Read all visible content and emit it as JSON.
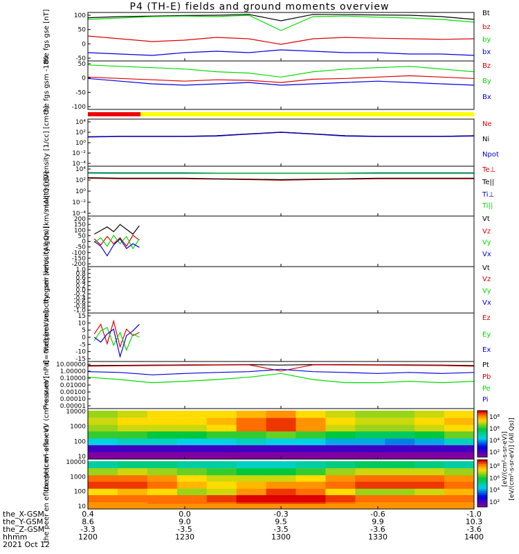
{
  "title": "P4 (TH-E) fields and ground moments overview",
  "footer": {
    "row_labels": [
      "the_X-GSM",
      "the_Y-GSM",
      "the_Z-GSM",
      "hhmm",
      "2021 Oct 12"
    ],
    "ticks": [
      [
        "0.4",
        "0.0",
        "-0.3",
        "-0.6",
        "-1.0"
      ],
      [
        "8.6",
        "9.0",
        "9.5",
        "9.9",
        "10.3"
      ],
      [
        "-3.3",
        "-3.5",
        "-3.5",
        "-3.6",
        "-3.6"
      ],
      [
        "1200",
        "1230",
        "1300",
        "1330",
        "1400"
      ]
    ]
  },
  "colors": {
    "black": "#000000",
    "red": "#dd0000",
    "green": "#00dd00",
    "blue": "#0000dd",
    "yellow": "#ffff00",
    "panel_red": "#ee0000"
  },
  "chart_data": [
    {
      "type": "line",
      "ylabel": "the fgs gse [nT]",
      "ylim": [
        -70,
        105
      ],
      "yticks": [
        "100",
        "50",
        "0",
        "-50"
      ],
      "x": [
        "12:00",
        "12:10",
        "12:20",
        "12:30",
        "12:40",
        "12:50",
        "13:00",
        "13:10",
        "13:20",
        "13:30",
        "13:40",
        "13:50",
        "14:00"
      ],
      "series": [
        {
          "name": "Bt",
          "color": "black",
          "values": [
            86,
            90,
            92,
            94,
            95,
            98,
            75,
            98,
            97,
            96,
            95,
            90,
            80
          ]
        },
        {
          "name": "bz",
          "color": "red",
          "values": [
            20,
            10,
            0,
            5,
            15,
            10,
            -10,
            10,
            15,
            12,
            10,
            8,
            10
          ]
        },
        {
          "name": "by",
          "color": "green",
          "values": [
            80,
            85,
            90,
            92,
            90,
            95,
            40,
            90,
            92,
            88,
            85,
            80,
            70
          ]
        },
        {
          "name": "bx",
          "color": "blue",
          "values": [
            -40,
            -45,
            -50,
            -40,
            -35,
            -40,
            -30,
            -35,
            -40,
            -40,
            -45,
            -45,
            -50
          ]
        }
      ]
    },
    {
      "type": "line",
      "ylabel": "the fgs gsm -180",
      "ylim": [
        -120,
        60
      ],
      "yticks": [
        "50",
        "0",
        "-50",
        "-100"
      ],
      "x": [
        "12:00",
        "12:10",
        "12:20",
        "12:30",
        "12:40",
        "12:50",
        "13:00",
        "13:10",
        "13:20",
        "13:30",
        "13:40",
        "13:50",
        "14:00"
      ],
      "series": [
        {
          "name": "Bz",
          "color": "red",
          "values": [
            0,
            -5,
            -10,
            -15,
            -10,
            -12,
            -20,
            -8,
            -5,
            0,
            5,
            0,
            -5
          ]
        },
        {
          "name": "By",
          "color": "green",
          "values": [
            45,
            40,
            35,
            30,
            20,
            15,
            0,
            20,
            30,
            35,
            40,
            30,
            20
          ]
        },
        {
          "name": "Bx",
          "color": "blue",
          "values": [
            -5,
            -15,
            -25,
            -30,
            -25,
            -20,
            -30,
            -25,
            -20,
            -15,
            -20,
            -25,
            -30
          ]
        }
      ]
    },
    {
      "type": "line",
      "ylabel": "Density [1/cc] [cm-3]",
      "scale": "log",
      "ylim": [
        0.0001,
        10000
      ],
      "yticks": [
        "10⁴",
        "10²",
        "10⁰",
        "10⁻²",
        "10⁻⁴"
      ],
      "x": [
        "12:00",
        "12:10",
        "12:20",
        "12:30",
        "12:40",
        "12:50",
        "13:00",
        "13:10",
        "13:20",
        "13:30",
        "13:40",
        "13:50",
        "14:00"
      ],
      "series": [
        {
          "name": "Ne",
          "color": "red",
          "values": [
            10,
            12,
            12,
            12,
            15,
            30,
            60,
            30,
            15,
            12,
            12,
            12,
            15
          ]
        },
        {
          "name": "Ni",
          "color": "black",
          "values": [
            10,
            12,
            12,
            12,
            15,
            30,
            60,
            30,
            15,
            12,
            12,
            12,
            15
          ]
        },
        {
          "name": "Npot",
          "color": "blue",
          "values": [
            9,
            11,
            11,
            11,
            13,
            28,
            55,
            28,
            13,
            11,
            11,
            11,
            13
          ]
        }
      ]
    },
    {
      "type": "line",
      "ylabel": "moqt3 [eV]",
      "scale": "log",
      "ylim": [
        1e-05,
        100000
      ],
      "yticks": [
        "10⁴",
        "10²",
        "10⁰",
        "10⁻²",
        "10⁻⁴"
      ],
      "x": [
        "12:00",
        "12:10",
        "12:20",
        "12:30",
        "12:40",
        "12:50",
        "13:00",
        "13:10",
        "13:20",
        "13:30",
        "13:40",
        "13:50",
        "14:00"
      ],
      "series": [
        {
          "name": "Te⊥",
          "color": "red",
          "values": [
            400,
            300,
            300,
            300,
            250,
            200,
            150,
            200,
            250,
            300,
            300,
            300,
            300
          ]
        },
        {
          "name": "Te||",
          "color": "black",
          "values": [
            500,
            400,
            400,
            400,
            300,
            250,
            200,
            250,
            300,
            400,
            400,
            400,
            400
          ]
        },
        {
          "name": "Ti⊥",
          "color": "blue",
          "values": [
            5000,
            4500,
            4500,
            4500,
            4000,
            4000,
            4000,
            4000,
            4000,
            4500,
            4500,
            4500,
            4500
          ]
        },
        {
          "name": "Ti||",
          "color": "green",
          "values": [
            4000,
            3500,
            3500,
            3500,
            3500,
            3500,
            3500,
            3500,
            3500,
            3500,
            3500,
            3500,
            3500
          ]
        }
      ]
    },
    {
      "type": "line",
      "ylabel": "the peir velocity gsm [km/s (All Qs)]",
      "ylim": [
        -210,
        210
      ],
      "yticks": [
        "200",
        "150",
        "100",
        "50",
        "0",
        "-50",
        "-100",
        "-150",
        "-200"
      ],
      "x": [
        "12:02",
        "12:04",
        "12:06",
        "12:08",
        "12:10",
        "12:12",
        "12:14",
        "12:16"
      ],
      "series": [
        {
          "name": "Vt",
          "color": "black",
          "values": [
            60,
            90,
            120,
            80,
            140,
            100,
            60,
            130
          ]
        },
        {
          "name": "Vz",
          "color": "red",
          "values": [
            20,
            -30,
            40,
            -20,
            30,
            -40,
            50,
            10
          ]
        },
        {
          "name": "Vy",
          "color": "green",
          "values": [
            -10,
            30,
            -40,
            50,
            -20,
            40,
            -60,
            20
          ]
        },
        {
          "name": "Vx",
          "color": "blue",
          "values": [
            0,
            -40,
            -120,
            -30,
            20,
            -60,
            -20,
            -50
          ]
        }
      ]
    },
    {
      "type": "line",
      "ylabel": "the peer velocity gsm [km/s (All Qs)]",
      "ylim": [
        -1,
        1
      ],
      "yticks": [
        "1.0",
        "0.8",
        "0.6",
        "0.4",
        "0.2",
        "0.0",
        "-0.2",
        "-0.4",
        "-0.6",
        "-0.8",
        "-1.0"
      ],
      "x": [],
      "series": [
        {
          "name": "Vt",
          "color": "black",
          "values": []
        },
        {
          "name": "Vz",
          "color": "red",
          "values": []
        },
        {
          "name": "Vy",
          "color": "green",
          "values": []
        },
        {
          "name": "Vx",
          "color": "blue",
          "values": []
        }
      ]
    },
    {
      "type": "line",
      "ylabel": "E=-VxB [mV/m]",
      "ylim": [
        -15,
        15
      ],
      "yticks": [
        "15",
        "10",
        "5",
        "0",
        "-5",
        "-10",
        "-15"
      ],
      "x": [
        "12:02",
        "12:04",
        "12:06",
        "12:08",
        "12:10",
        "12:12",
        "12:14",
        "12:16"
      ],
      "series": [
        {
          "name": "Ez",
          "color": "red",
          "values": [
            2,
            8,
            -4,
            10,
            -6,
            5,
            1,
            3
          ]
        },
        {
          "name": "Ey",
          "color": "green",
          "values": [
            -2,
            4,
            6,
            -5,
            3,
            -8,
            2,
            0
          ]
        },
        {
          "name": "Ex",
          "color": "blue",
          "values": [
            0,
            -3,
            2,
            5,
            -12,
            1,
            4,
            8
          ]
        }
      ]
    },
    {
      "type": "line",
      "ylabel": "Pressure [nPa]",
      "scale": "log",
      "ylim": [
        1e-05,
        10
      ],
      "yticks": [
        "10.00000",
        "1.00000",
        "0.10000",
        "0.01000",
        "0.00100",
        "0.00010",
        "0.00001"
      ],
      "x": [
        "12:00",
        "12:10",
        "12:20",
        "12:30",
        "12:40",
        "12:50",
        "13:00",
        "13:10",
        "13:20",
        "13:30",
        "13:40",
        "13:50",
        "14:00"
      ],
      "series": [
        {
          "name": "Pt",
          "color": "black",
          "values": [
            3,
            3.2,
            3.5,
            3.6,
            3.8,
            4,
            3.5,
            4,
            4,
            3.8,
            3.6,
            3.5,
            3
          ]
        },
        {
          "name": "Pb",
          "color": "red",
          "values": [
            2.5,
            2.8,
            3,
            3.2,
            3.5,
            3.8,
            0.6,
            3.8,
            3.6,
            3.4,
            3.2,
            3,
            2.5
          ]
        },
        {
          "name": "Pe",
          "color": "green",
          "values": [
            0.1,
            0.05,
            0.02,
            0.03,
            0.05,
            0.1,
            0.3,
            0.05,
            0.02,
            0.02,
            0.03,
            0.02,
            0.03
          ]
        },
        {
          "name": "Pi",
          "color": "blue",
          "values": [
            0.5,
            0.4,
            0.2,
            0.3,
            0.4,
            0.5,
            1,
            0.5,
            0.4,
            0.3,
            0.4,
            0.3,
            0.4
          ]
        }
      ]
    },
    {
      "type": "heatmap",
      "ylabel": "the peir en eflux eV (cm²-s-sr-eV)",
      "scale": "log",
      "ylim": [
        5,
        25000
      ],
      "yticks": [
        "10000",
        "1000",
        "100",
        "10"
      ],
      "x": [
        "12:00",
        "12:10",
        "12:20",
        "12:30",
        "12:40",
        "12:50",
        "13:00",
        "13:10",
        "13:20",
        "13:30",
        "13:40",
        "13:50",
        "14:00"
      ],
      "energy_eV": [
        10,
        30,
        100,
        300,
        1000,
        3000,
        10000
      ],
      "values_log10": [
        [
          2.0,
          2.0,
          2.0,
          2.0,
          2.0,
          2.0,
          2.0,
          2.0,
          2.0,
          2.0,
          2.0,
          2.0,
          2.0
        ],
        [
          2.5,
          2.5,
          2.5,
          2.5,
          2.5,
          2.5,
          2.5,
          2.5,
          2.5,
          2.5,
          2.5,
          2.5,
          2.5
        ],
        [
          4.0,
          4.2,
          4.2,
          4.0,
          4.0,
          4.2,
          4.0,
          4.0,
          3.8,
          3.8,
          3.6,
          3.8,
          4.2
        ],
        [
          5.2,
          5.2,
          5.0,
          5.0,
          5.2,
          5.2,
          5.4,
          5.2,
          5.0,
          4.8,
          4.8,
          5.0,
          5.4
        ],
        [
          5.6,
          5.8,
          5.8,
          5.8,
          6.0,
          6.6,
          6.8,
          6.4,
          5.8,
          5.6,
          5.6,
          5.8,
          6.0
        ],
        [
          5.8,
          6.0,
          6.0,
          6.0,
          6.2,
          6.6,
          6.8,
          6.4,
          6.0,
          5.8,
          5.8,
          6.0,
          6.2
        ],
        [
          5.6,
          5.8,
          6.0,
          6.0,
          6.0,
          6.2,
          6.4,
          6.0,
          5.8,
          5.6,
          5.6,
          5.8,
          6.0
        ]
      ]
    },
    {
      "type": "heatmap",
      "ylabel": "the peer en eflux eV (cm²-s-sr-eV)",
      "scale": "log",
      "ylim": [
        5,
        25000
      ],
      "yticks": [
        "10000",
        "1000",
        "100",
        "10"
      ],
      "x": [
        "12:00",
        "12:10",
        "12:20",
        "12:30",
        "12:40",
        "12:50",
        "13:00",
        "13:10",
        "13:20",
        "13:30",
        "13:40",
        "13:50",
        "14:00"
      ],
      "energy_eV": [
        10,
        30,
        100,
        300,
        1000,
        3000,
        10000
      ],
      "values_log10": [
        [
          6.4,
          6.4,
          6.6,
          6.6,
          6.6,
          6.8,
          6.8,
          6.8,
          6.6,
          6.4,
          6.4,
          6.4,
          6.4
        ],
        [
          6.6,
          6.6,
          6.6,
          6.6,
          6.8,
          7.0,
          7.0,
          7.0,
          6.8,
          6.6,
          6.6,
          6.6,
          6.6
        ],
        [
          6.0,
          6.2,
          6.0,
          5.6,
          5.8,
          6.4,
          6.8,
          6.6,
          6.0,
          5.6,
          5.6,
          5.8,
          6.2
        ],
        [
          6.8,
          6.8,
          6.6,
          6.2,
          6.0,
          6.2,
          6.4,
          6.4,
          6.6,
          6.8,
          6.8,
          6.8,
          6.6
        ],
        [
          6.6,
          6.6,
          6.4,
          6.0,
          5.8,
          5.8,
          5.8,
          6.0,
          6.4,
          6.6,
          6.6,
          6.6,
          6.4
        ],
        [
          5.6,
          5.8,
          5.6,
          5.4,
          5.2,
          5.0,
          5.0,
          5.2,
          5.6,
          5.8,
          5.8,
          5.8,
          5.6
        ],
        [
          4.4,
          4.6,
          4.6,
          4.4,
          4.4,
          4.2,
          4.2,
          4.4,
          4.6,
          4.8,
          4.8,
          4.6,
          4.4
        ]
      ]
    }
  ],
  "colorbars": [
    {
      "label": "[eV/(cm²-s-sr-eV)] (All Qs)]",
      "ticks": [
        "10⁸",
        "10⁶",
        "10⁴",
        "10²"
      ]
    },
    {
      "label": "[eV/(cm²-s-sr-eV)]",
      "ticks": [
        "10⁸",
        "10⁶",
        "10⁴",
        "10²"
      ]
    }
  ]
}
